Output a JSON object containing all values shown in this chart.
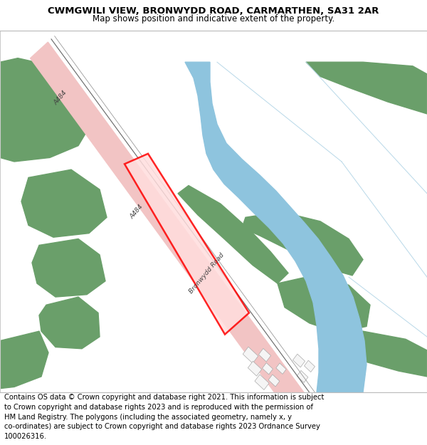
{
  "title": "CWMGWILI VIEW, BRONWYDD ROAD, CARMARTHEN, SA31 2AR",
  "subtitle": "Map shows position and indicative extent of the property.",
  "footer": "Contains OS data © Crown copyright and database right 2021. This information is subject to Crown copyright and database rights 2023 and is reproduced with the permission of HM Land Registry. The polygons (including the associated geometry, namely x, y co-ordinates) are subject to Crown copyright and database rights 2023 Ordnance Survey 100026316.",
  "title_fontsize": 9.5,
  "subtitle_fontsize": 8.5,
  "footer_fontsize": 7.2,
  "bg_color": "#ffffff",
  "road_color": "#f2c4c4",
  "green_color": "#6a9f6a",
  "river_color": "#8ec4de",
  "river_light": "#c5dff0",
  "thin_line_color": "#888888",
  "red_outline": "#ff0000",
  "red_fill": "#ffdddd",
  "road_label_a484_top": "A484",
  "road_label_a484_mid": "A484",
  "road_label_bronwydd": "Bronwydd Road",
  "figsize": [
    6.0,
    6.25
  ],
  "dpi": 100
}
